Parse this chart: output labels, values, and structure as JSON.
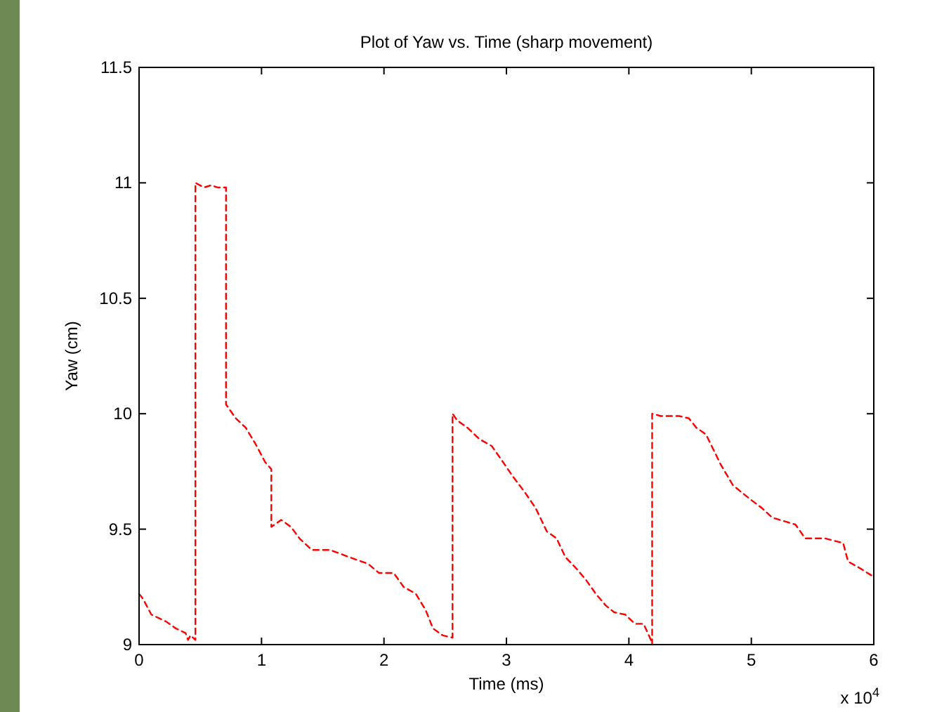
{
  "chart_data": {
    "type": "line",
    "title": "Plot of Yaw vs. Time (sharp movement)",
    "xlabel": "Time (ms)",
    "ylabel": "Yaw (cm)",
    "annotations": [
      "x 10$^{4}$"
    ],
    "xlim": [
      0,
      6
    ],
    "xticks": [
      0,
      1,
      2,
      3,
      4,
      5,
      6
    ],
    "ylim": [
      9,
      11.5
    ],
    "yticks": [
      9,
      9.5,
      10,
      10.5,
      11,
      11.5
    ],
    "grid": false,
    "line_style": "dashed",
    "marker": "none",
    "series": [
      {
        "color": "#ff0000",
        "x": [
          0,
          0.03,
          0.1,
          0.22,
          0.3,
          0.38,
          0.4,
          0.42,
          0.46,
          0.46,
          0.53,
          0.59,
          0.64,
          0.71,
          0.71,
          0.79,
          0.87,
          0.95,
          1.03,
          1.08,
          1.08,
          1.16,
          1.24,
          1.31,
          1.41,
          1.56,
          1.71,
          1.87,
          1.96,
          2.08,
          2.16,
          2.26,
          2.34,
          2.4,
          2.48,
          2.56,
          2.56,
          2.6,
          2.68,
          2.78,
          2.88,
          2.96,
          3.05,
          3.15,
          3.24,
          3.33,
          3.41,
          3.48,
          3.57,
          3.65,
          3.73,
          3.81,
          3.88,
          3.97,
          4.05,
          4.12,
          4.18,
          4.19,
          4.19,
          4.26,
          4.41,
          4.49,
          4.55,
          4.63,
          4.75,
          4.85,
          4.99,
          5.09,
          5.17,
          5.36,
          5.44,
          5.6,
          5.75,
          5.79,
          5.89,
          5.98
        ],
        "values": [
          9.22,
          9.2,
          9.13,
          9.1,
          9.07,
          9.05,
          9.02,
          9.04,
          9.02,
          11.0,
          10.98,
          10.99,
          10.98,
          10.98,
          10.04,
          9.98,
          9.94,
          9.87,
          9.79,
          9.76,
          9.51,
          9.54,
          9.51,
          9.46,
          9.41,
          9.41,
          9.38,
          9.35,
          9.31,
          9.31,
          9.25,
          9.22,
          9.15,
          9.07,
          9.04,
          9.03,
          10.0,
          9.97,
          9.94,
          9.89,
          9.86,
          9.8,
          9.73,
          9.66,
          9.59,
          9.49,
          9.46,
          9.38,
          9.33,
          9.28,
          9.22,
          9.17,
          9.14,
          9.13,
          9.09,
          9.09,
          9.02,
          9.0,
          10.0,
          9.99,
          9.99,
          9.98,
          9.94,
          9.91,
          9.78,
          9.69,
          9.63,
          9.59,
          9.55,
          9.52,
          9.46,
          9.46,
          9.44,
          9.36,
          9.33,
          9.3
        ]
      }
    ]
  }
}
